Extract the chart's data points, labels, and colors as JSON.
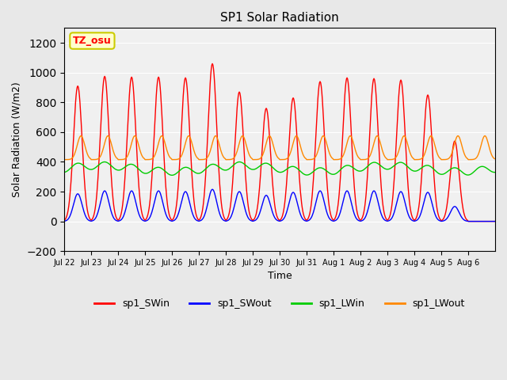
{
  "title": "SP1 Solar Radiation",
  "xlabel": "Time",
  "ylabel": "Solar Radiation (W/m2)",
  "ylim": [
    -200,
    1300
  ],
  "yticks": [
    -200,
    0,
    200,
    400,
    600,
    800,
    1000,
    1200
  ],
  "x_tick_labels": [
    "Jul 22",
    "Jul 23",
    "Jul 24",
    "Jul 25",
    "Jul 26",
    "Jul 27",
    "Jul 28",
    "Jul 29",
    "Jul 30",
    "Jul 31",
    "Aug 1",
    "Aug 2",
    "Aug 3",
    "Aug 4",
    "Aug 5",
    "Aug 6"
  ],
  "annotation_text": "TZ_osu",
  "annotation_color": "red",
  "annotation_bg": "#ffffcc",
  "annotation_border": "#cccc00",
  "colors": {
    "SWin": "#ff0000",
    "SWout": "#0000ff",
    "LWin": "#00cc00",
    "LWout": "#ff8800"
  },
  "bg_color": "#e8e8e8",
  "plot_bg": "#f0f0f0",
  "n_days": 16,
  "SWin_peaks": [
    910,
    975,
    970,
    970,
    965,
    1060,
    870,
    760,
    830,
    940,
    965,
    960,
    950,
    850,
    540,
    0
  ],
  "SWout_peaks": [
    185,
    205,
    205,
    205,
    200,
    215,
    200,
    175,
    195,
    205,
    205,
    205,
    200,
    195,
    100,
    0
  ],
  "legend_labels": [
    "sp1_SWin",
    "sp1_SWout",
    "sp1_LWin",
    "sp1_LWout"
  ]
}
